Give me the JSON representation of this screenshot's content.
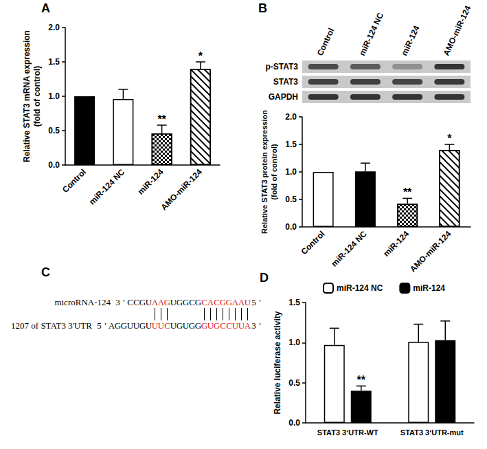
{
  "panel_labels": [
    "A",
    "B",
    "C",
    "D"
  ],
  "chart_data": [
    {
      "type": "bar",
      "ylabel": "Relative STAT3 mRNA expression\n(fold of control)",
      "categories": [
        "Control",
        "miR-124 NC",
        "miR-124",
        "AMO-miR-124"
      ],
      "values": [
        1.0,
        0.96,
        0.46,
        1.4
      ],
      "errors": [
        null,
        0.14,
        0.12,
        0.1
      ],
      "significance": [
        null,
        null,
        "**",
        "*"
      ],
      "colors": [
        "#000000",
        "#ffffff",
        "#ffffff",
        "#ffffff"
      ],
      "ylim": [
        0,
        2
      ],
      "yticks": [
        {
          "value": 0,
          "label": "0.0"
        },
        0.5,
        {
          "value": 1,
          "label": "1.0"
        },
        1.5,
        {
          "value": 2,
          "label": "2.0"
        }
      ],
      "grid": false
    },
    {
      "type": "bar",
      "ylabel": "Relative STAT3 protein expression\n(fold of control)",
      "categories": [
        "Control",
        "miR-124 NC",
        "miR-124",
        "AMO-miR-124"
      ],
      "values": [
        1.0,
        1.01,
        0.42,
        1.4
      ],
      "errors": [
        null,
        0.15,
        0.1,
        0.1
      ],
      "significance": [
        null,
        null,
        "**",
        "*"
      ],
      "colors": [
        "#ffffff",
        "#000000",
        "#ffffff",
        "#ffffff"
      ],
      "ylim": [
        0,
        2
      ],
      "yticks": [
        {
          "value": 0,
          "label": "0.0"
        },
        0.5,
        {
          "value": 1,
          "label": "1.0"
        },
        1.5,
        {
          "value": 2,
          "label": "2.0"
        }
      ],
      "grid": false
    },
    {
      "type": "bar",
      "ylabel": "Relative luciferase activity",
      "categories": [
        "STAT3 3‘UTR-WT",
        "STAT3 3‘UTR-mut"
      ],
      "series": [
        {
          "name": "miR-124 NC",
          "color": "#ffffff",
          "values": [
            0.97,
            1.01
          ],
          "errors": [
            0.21,
            0.22
          ],
          "significance": [
            null,
            null
          ]
        },
        {
          "name": "miR-124",
          "color": "#000000",
          "values": [
            0.4,
            1.03
          ],
          "errors": [
            0.06,
            0.24
          ],
          "significance": [
            "**",
            null
          ]
        }
      ],
      "ylim": [
        0,
        1.5
      ],
      "yticks": [
        {
          "value": 0,
          "label": "0.0"
        },
        0.5,
        {
          "value": 1,
          "label": "1.0"
        },
        1.5
      ],
      "legend": "top",
      "grid": false
    }
  ],
  "blot": {
    "lanes": [
      "Control",
      "miR-124 NC",
      "miR-124",
      "AMO-miR-124"
    ],
    "rows": [
      "p-STAT3",
      "STAT3",
      "GAPDH"
    ]
  },
  "sequence": {
    "rows": [
      {
        "label": "microRNA-124",
        "segments": [
          {
            "text": "3'CCGU"
          },
          {
            "text": "AAG",
            "highlight": true
          },
          {
            "text": "UGGCG"
          },
          {
            "text": "CACGGAAU",
            "highlight": true
          },
          {
            "text": "5'"
          }
        ]
      },
      {
        "label": "1207 of STAT3 3'UTR",
        "segments": [
          {
            "text": "5'AGGUUGU"
          },
          {
            "text": "UUC",
            "highlight": true
          },
          {
            "text": "UGUGG"
          },
          {
            "text": "GUGCCUUA",
            "highlight": true
          },
          {
            "text": "3'"
          }
        ]
      }
    ]
  }
}
